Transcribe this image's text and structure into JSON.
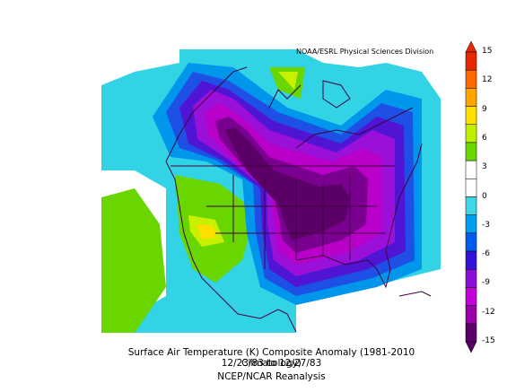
{
  "credit": "NOAA/ESRL Physical Sciences Division",
  "caption": {
    "line1": "Surface Air Temperature (K) Composite Anomaly (1981-2010 Climatology)",
    "line2": "12/23/83  to 12/27/83",
    "line3": "NCEP/NCAR Reanalysis"
  },
  "colorbar": {
    "ticks": [
      "15",
      "12",
      "9",
      "6",
      "3",
      "0",
      "-3",
      "-6",
      "-9",
      "-12",
      "-15"
    ],
    "colors": [
      "#e62900",
      "#ff6a00",
      "#ffa400",
      "#ffde00",
      "#bff000",
      "#6ad600",
      "#ffffff",
      "#ffffff",
      "#3fd7e7",
      "#00a0f0",
      "#005cf0",
      "#3214d7",
      "#8a10d8",
      "#c200d8",
      "#9a00a8",
      "#5a0068"
    ]
  },
  "map": {
    "region": "North America",
    "field": "surface air temperature anomaly",
    "colors": {
      "cyan": "#33d3e6",
      "blue_light": "#0096ec",
      "blue": "#1e50e6",
      "indigo": "#5014d4",
      "violet": "#9a10d8",
      "magenta": "#b800c8",
      "purple_dark": "#7a0090",
      "purple_deepest": "#5a0066",
      "green": "#6ad600",
      "lime": "#c8f000",
      "yellow": "#ffde00",
      "white": "#ffffff",
      "border": "#400040"
    }
  }
}
